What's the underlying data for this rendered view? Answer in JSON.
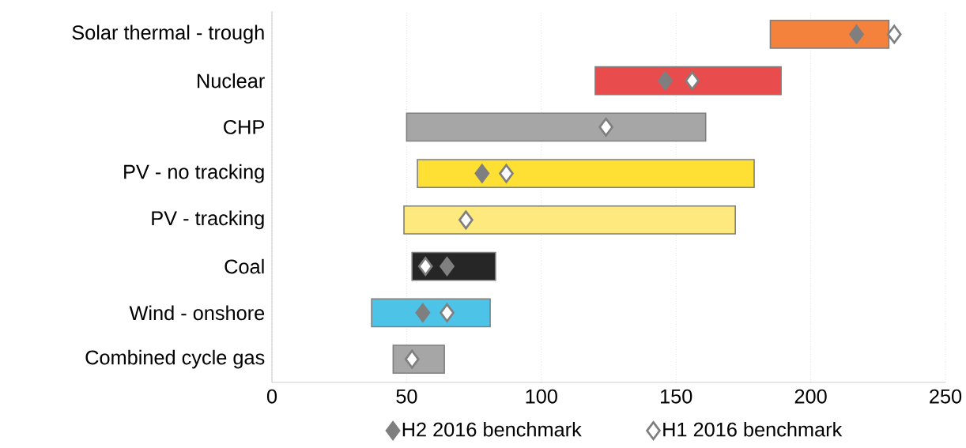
{
  "chart_data": {
    "type": "bar",
    "orientation": "horizontal",
    "categories": [
      "Solar thermal - trough",
      "Nuclear",
      "CHP",
      "PV - no tracking",
      "PV - tracking",
      "Coal",
      "Wind - onshore",
      "Combined cycle gas"
    ],
    "series": [
      {
        "base": [
          185,
          120,
          50,
          54,
          49,
          52,
          37,
          45
        ],
        "values": [
          44,
          69,
          111,
          125,
          123,
          31,
          44,
          19
        ],
        "colors": [
          "#f4813c",
          "#e84c4c",
          "#a6a6a6",
          "#fde033",
          "#fde97e",
          "#262626",
          "#4ec3e8",
          "#a6a6a6"
        ]
      },
      {
        "type": "scatter",
        "name": "H2 2016 benchmark",
        "color": "#7f7f7f",
        "marker": "diamond",
        "values": [
          217,
          146,
          null,
          78,
          null,
          65,
          56,
          null
        ]
      },
      {
        "type": "scatter",
        "name": "H1 2016 benchmark",
        "color": "#ffffff",
        "marker": "diamond",
        "values": [
          231,
          156,
          124,
          87,
          72,
          57,
          65,
          52
        ]
      }
    ],
    "xlim": [
      0,
      250
    ],
    "xticks": [
      0,
      50,
      100,
      150,
      200,
      250
    ],
    "grid": "x",
    "legend": "bottom"
  }
}
